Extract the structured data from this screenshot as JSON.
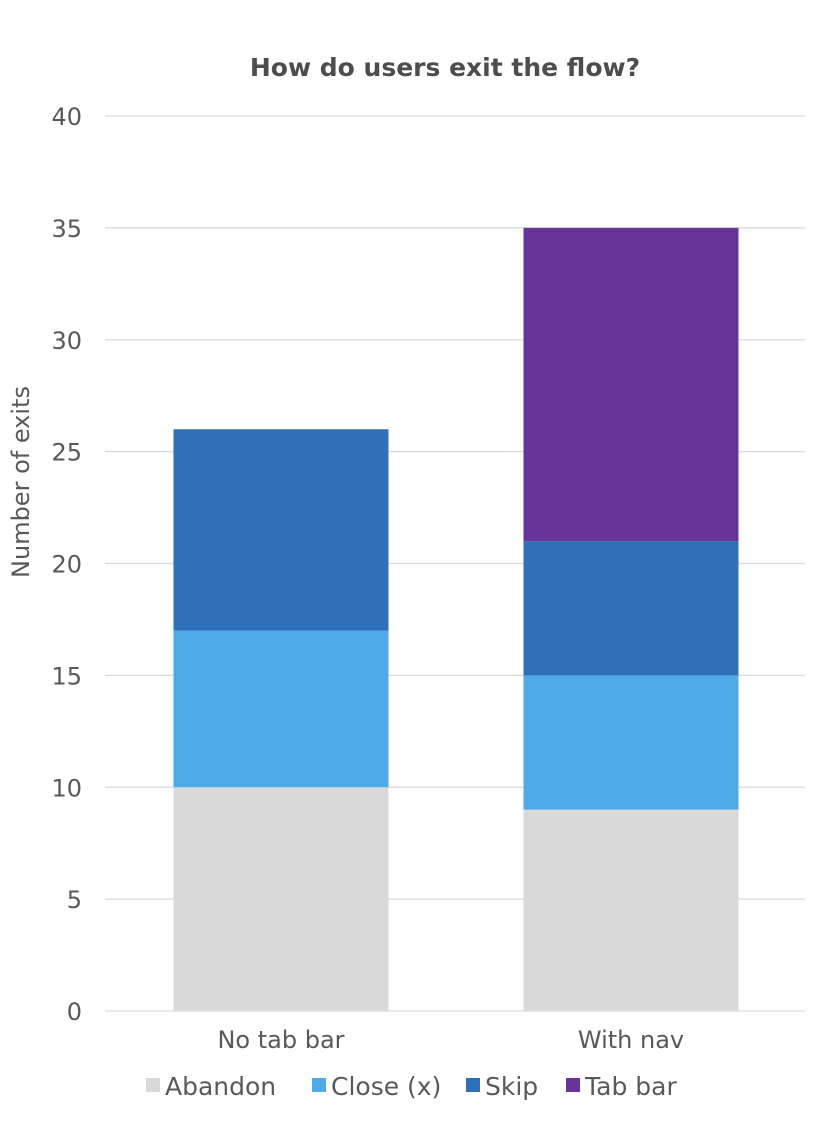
{
  "chart_data": {
    "type": "bar",
    "stacked": true,
    "title": "How do users exit the flow?",
    "xlabel": "",
    "ylabel": "Number of exits",
    "categories": [
      "No tab bar",
      "With nav"
    ],
    "series": [
      {
        "name": "Abandon",
        "values": [
          10,
          9
        ],
        "color": "#d9d9d9"
      },
      {
        "name": "Close (x)",
        "values": [
          7,
          6
        ],
        "color": "#4eabe8"
      },
      {
        "name": "Skip",
        "values": [
          9,
          6
        ],
        "color": "#2e70b9"
      },
      {
        "name": "Tab bar",
        "values": [
          0,
          14
        ],
        "color": "#673499"
      }
    ],
    "ylim": [
      0,
      40
    ],
    "yticks": [
      0,
      5,
      10,
      15,
      20,
      25,
      30,
      35,
      40
    ],
    "grid": true,
    "legend": "bottom"
  }
}
